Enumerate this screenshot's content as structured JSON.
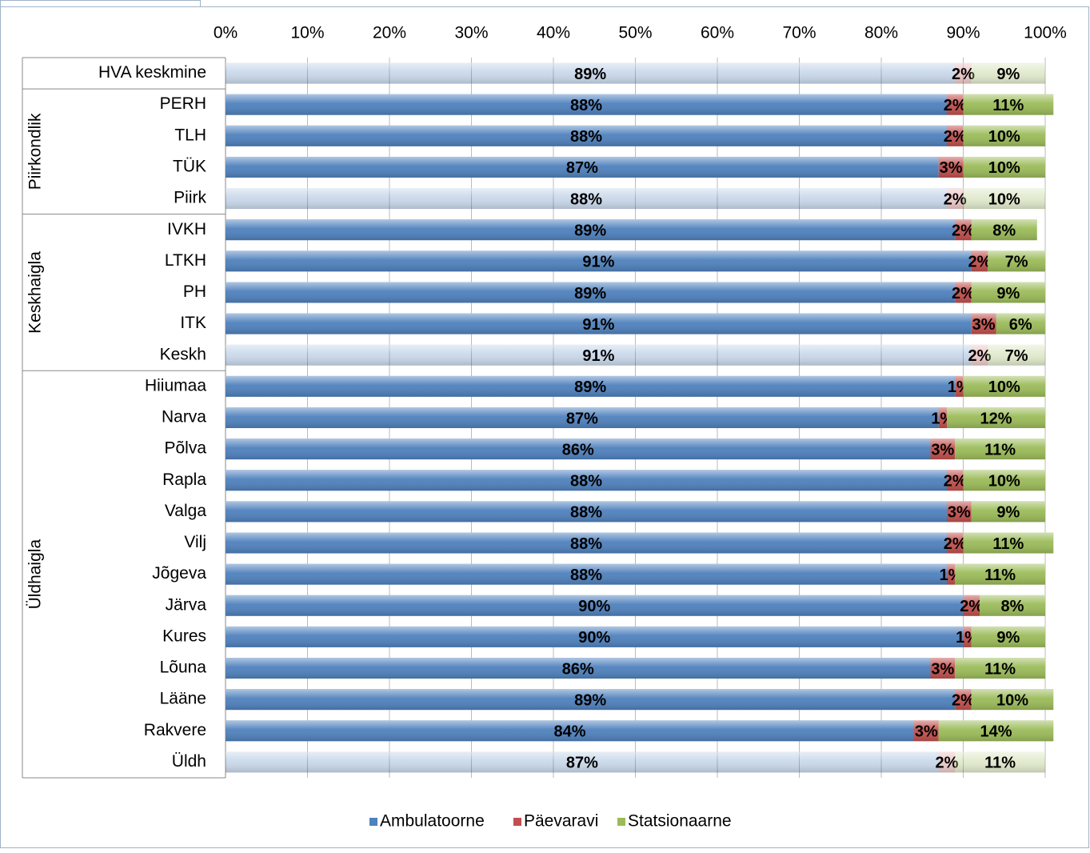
{
  "chart_data": {
    "type": "stacked-bar-horizontal",
    "categories": [
      "HVA keskmine",
      "PERH",
      "TLH",
      "TÜK",
      "Piirk",
      "IVKH",
      "LTKH",
      "PH",
      "ITK",
      "Keskh",
      "Hiiumaa",
      "Narva",
      "Põlva",
      "Rapla",
      "Valga",
      "Vilj",
      "Jõgeva",
      "Järva",
      "Kures",
      "Lõuna",
      "Lääne",
      "Rakvere",
      "Üldh"
    ],
    "groups": [
      {
        "label": "Piirkondlik",
        "start": 1,
        "end": 4
      },
      {
        "label": "Keskhaigla",
        "start": 5,
        "end": 9
      },
      {
        "label": "Üldhaigla",
        "start": 10,
        "end": 22
      }
    ],
    "faded": [
      0,
      4,
      9,
      22
    ],
    "series": [
      {
        "name": "Ambulatoorne",
        "color": "#4f81bd",
        "values": [
          89,
          88,
          88,
          87,
          88,
          89,
          91,
          89,
          91,
          91,
          89,
          87,
          86,
          88,
          88,
          88,
          88,
          90,
          90,
          86,
          89,
          84,
          87
        ],
        "value_labels": [
          "89%",
          "88%",
          "88%",
          "87%",
          "88%",
          "89%",
          "91%",
          "89%",
          "91%",
          "91%",
          "89%",
          "87%",
          "86%",
          "88%",
          "88%",
          "88%",
          "88%",
          "90%",
          "90%",
          "86%",
          "89%",
          "84%",
          "87%"
        ]
      },
      {
        "name": "Päevaravi",
        "color": "#c0504d",
        "values": [
          2,
          2,
          2,
          3,
          2,
          2,
          2,
          2,
          3,
          2,
          1,
          1,
          3,
          2,
          3,
          2,
          1,
          2,
          1,
          3,
          2,
          3,
          2
        ],
        "value_labels": [
          "2%",
          "2%",
          "2%",
          "3%",
          "2%",
          "2%",
          "2%",
          "2%",
          "3%",
          "2%",
          "1%",
          "1%",
          "3%",
          "2%",
          "3%",
          "2%",
          "1%",
          "2%",
          "1%",
          "3%",
          "2%",
          "3%",
          "2%"
        ]
      },
      {
        "name": "Statsionaarne",
        "color": "#9bbb59",
        "values": [
          9,
          11,
          10,
          10,
          10,
          8,
          7,
          9,
          6,
          7,
          10,
          12,
          11,
          10,
          9,
          11,
          11,
          8,
          9,
          11,
          10,
          14,
          11
        ],
        "value_labels": [
          "9%",
          "11%",
          "10%",
          "10%",
          "10%",
          "8%",
          "7%",
          "9%",
          "6%",
          "7%",
          "10%",
          "12%",
          "11%",
          "10%",
          "9%",
          "11%",
          "11%",
          "8%",
          "9%",
          "11%",
          "10%",
          "14%",
          "11%"
        ]
      }
    ],
    "xlim": [
      0,
      100
    ],
    "xticks": [
      {
        "value": 0,
        "label": "0%"
      },
      {
        "value": 10,
        "label": "10%"
      },
      {
        "value": 20,
        "label": "20%"
      },
      {
        "value": 30,
        "label": "30%"
      },
      {
        "value": 40,
        "label": "40%"
      },
      {
        "value": 50,
        "label": "50%"
      },
      {
        "value": 60,
        "label": "60%"
      },
      {
        "value": 70,
        "label": "70%"
      },
      {
        "value": 80,
        "label": "80%"
      },
      {
        "value": 90,
        "label": "90%"
      },
      {
        "value": 100,
        "label": "100%"
      }
    ],
    "grid": true,
    "legend": "bottom"
  }
}
